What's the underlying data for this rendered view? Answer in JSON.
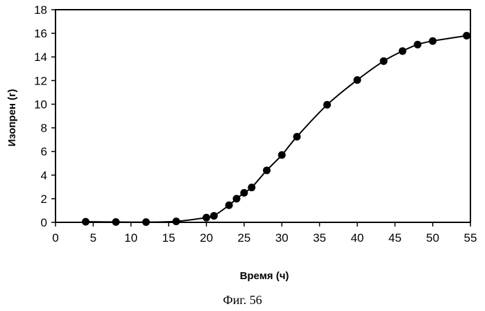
{
  "figure_caption": "Фиг. 56",
  "chart_data": {
    "type": "scatter",
    "title": "",
    "xlabel": "Время (ч)",
    "ylabel": "Изопрен (г)",
    "xlim": [
      0,
      55
    ],
    "ylim": [
      0,
      18
    ],
    "x_ticks": [
      0,
      5,
      10,
      15,
      20,
      25,
      30,
      35,
      40,
      45,
      50,
      55
    ],
    "y_ticks": [
      0,
      2,
      4,
      6,
      8,
      10,
      12,
      14,
      16,
      18
    ],
    "grid": false,
    "legend": false,
    "series": [
      {
        "marker": "filled-circle",
        "line": "smooth",
        "color": "#000000",
        "points": [
          [
            4,
            0.05
          ],
          [
            8,
            0.03
          ],
          [
            12,
            0.02
          ],
          [
            16,
            0.08
          ],
          [
            20,
            0.4
          ],
          [
            21,
            0.55
          ],
          [
            23,
            1.45
          ],
          [
            24,
            2.0
          ],
          [
            25,
            2.5
          ],
          [
            26,
            2.95
          ],
          [
            28,
            4.4
          ],
          [
            30,
            5.7
          ],
          [
            32,
            7.25
          ],
          [
            36,
            9.95
          ],
          [
            40,
            12.05
          ],
          [
            43.5,
            13.65
          ],
          [
            46,
            14.5
          ],
          [
            48,
            15.05
          ],
          [
            50,
            15.35
          ],
          [
            54.5,
            15.8
          ]
        ]
      }
    ]
  }
}
